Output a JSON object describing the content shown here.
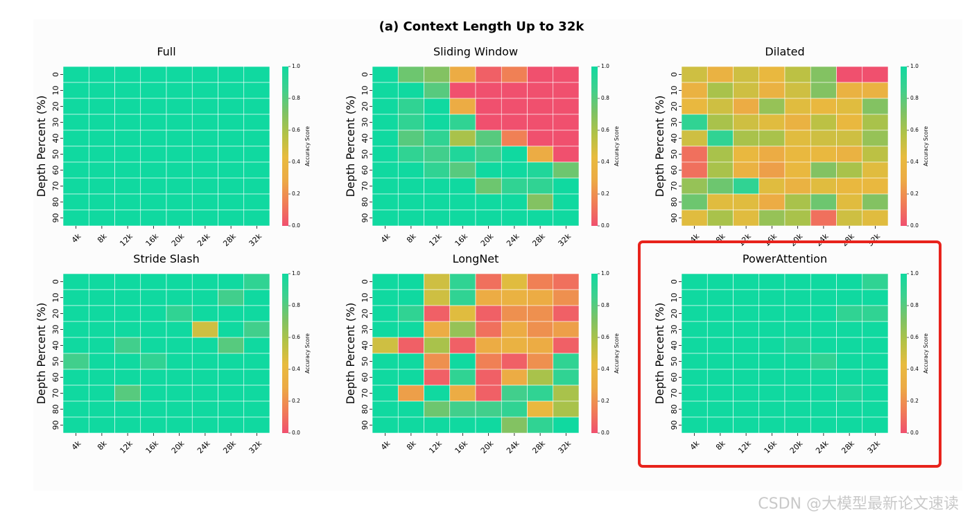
{
  "figure": {
    "title": "(a) Context Length Up to 32k",
    "watermark": "CSDN @大模型最新论文速读",
    "highlight_color": "#e8231c"
  },
  "colormap": [
    "#f0506e",
    "#f07e56",
    "#ecaa45",
    "#e8bb3e",
    "#b4c245",
    "#7dc265",
    "#3ed08e",
    "#10d9a0"
  ],
  "chart_data": [
    {
      "type": "heatmap",
      "title": "Full",
      "xlabel": "",
      "ylabel": "Depth Percent (%)",
      "x": [
        "4k",
        "8k",
        "12k",
        "16k",
        "20k",
        "24k",
        "28k",
        "32k"
      ],
      "y": [
        "0",
        "10",
        "20",
        "30",
        "40",
        "50",
        "60",
        "70",
        "80",
        "90"
      ],
      "colorbar_label": "Accuracy Score",
      "colorbar_ticks": [
        "1.0",
        "0.8",
        "0.6",
        "0.4",
        "0.2",
        "0.0"
      ],
      "vlim": [
        0,
        1
      ],
      "values": [
        [
          1,
          1,
          1,
          1,
          1,
          1,
          1,
          1
        ],
        [
          1,
          1,
          1,
          1,
          1,
          1,
          1,
          1
        ],
        [
          1,
          1,
          1,
          1,
          1,
          1,
          1,
          1
        ],
        [
          1,
          1,
          1,
          1,
          1,
          1,
          1,
          1
        ],
        [
          1,
          1,
          1,
          1,
          1,
          1,
          1,
          1
        ],
        [
          1,
          1,
          1,
          1,
          1,
          1,
          1,
          1
        ],
        [
          1,
          1,
          1,
          1,
          1,
          1,
          1,
          1
        ],
        [
          1,
          1,
          1,
          1,
          1,
          1,
          1,
          1
        ],
        [
          1,
          1,
          1,
          1,
          1,
          1,
          1,
          1
        ],
        [
          1,
          1,
          1,
          1,
          1,
          1,
          1,
          1
        ]
      ]
    },
    {
      "type": "heatmap",
      "title": "Sliding Window",
      "xlabel": "",
      "ylabel": "Depth Percent (%)",
      "x": [
        "4k",
        "8k",
        "12k",
        "16k",
        "20k",
        "24k",
        "28k",
        "32k"
      ],
      "y": [
        "0",
        "10",
        "20",
        "30",
        "40",
        "50",
        "60",
        "70",
        "80",
        "90"
      ],
      "colorbar_label": "Accuracy Score",
      "colorbar_ticks": [
        "1.0",
        "0.8",
        "0.6",
        "0.4",
        "0.2",
        "0.0"
      ],
      "vlim": [
        0,
        1
      ],
      "values": [
        [
          1,
          0.75,
          0.7,
          0.3,
          0.05,
          0.15,
          0,
          0
        ],
        [
          1,
          1,
          0.8,
          0,
          0,
          0,
          0,
          0
        ],
        [
          1,
          0.9,
          1,
          0.3,
          0,
          0,
          0,
          0
        ],
        [
          1,
          0.9,
          1,
          0.9,
          0,
          0,
          0,
          0
        ],
        [
          1,
          0.8,
          0.9,
          0.6,
          0.8,
          0.15,
          0,
          0
        ],
        [
          1,
          0.9,
          0.85,
          0.95,
          0.85,
          1,
          0.3,
          0
        ],
        [
          1,
          1,
          0.9,
          0.8,
          1,
          1,
          0.95,
          0.75
        ],
        [
          1,
          1,
          1,
          1,
          0.75,
          0.9,
          0.9,
          1
        ],
        [
          1,
          1,
          1,
          1,
          1,
          1,
          0.7,
          1
        ],
        [
          1,
          1,
          1,
          1,
          1,
          1,
          1,
          1
        ]
      ]
    },
    {
      "type": "heatmap",
      "title": "Dilated",
      "xlabel": "",
      "ylabel": "Depth Percent (%)",
      "x": [
        "4k",
        "8k",
        "12k",
        "16k",
        "20k",
        "24k",
        "28k",
        "32k"
      ],
      "y": [
        "0",
        "10",
        "20",
        "30",
        "40",
        "50",
        "60",
        "70",
        "80",
        "90"
      ],
      "colorbar_label": "Accuracy Score",
      "colorbar_ticks": [
        "1.0",
        "0.8",
        "0.6",
        "0.4",
        "0.2",
        "0.0"
      ],
      "vlim": [
        0,
        1
      ],
      "values": [
        [
          0.5,
          0.35,
          0.5,
          0.4,
          0.55,
          0.7,
          0,
          0
        ],
        [
          0.35,
          0.6,
          0.5,
          0.35,
          0.5,
          0.7,
          0.35,
          0.35
        ],
        [
          0.4,
          0.5,
          0.3,
          0.65,
          0.45,
          0.4,
          0.45,
          0.7
        ],
        [
          0.9,
          0.6,
          0.5,
          0.45,
          0.35,
          0.55,
          0.4,
          0.6
        ],
        [
          0.5,
          0.9,
          0.6,
          0.6,
          0.45,
          0.5,
          0.5,
          0.65
        ],
        [
          0.1,
          0.6,
          0.4,
          0.3,
          0.4,
          0.4,
          0.35,
          0.55
        ],
        [
          0.1,
          0.6,
          0.35,
          0.25,
          0.4,
          0.7,
          0.6,
          0.45
        ],
        [
          0.65,
          0.75,
          0.9,
          0.45,
          0.35,
          0.45,
          0.4,
          0.4
        ],
        [
          0.75,
          0.45,
          0.45,
          0.3,
          0.6,
          0.75,
          0.45,
          0.7
        ],
        [
          0.45,
          0.6,
          0.45,
          0.65,
          0.6,
          0.1,
          0.5,
          0.45
        ]
      ]
    },
    {
      "type": "heatmap",
      "title": "Stride Slash",
      "xlabel": "",
      "ylabel": "Depth Percent (%)",
      "x": [
        "4k",
        "8k",
        "12k",
        "16k",
        "20k",
        "24k",
        "28k",
        "32k"
      ],
      "y": [
        "0",
        "10",
        "20",
        "30",
        "40",
        "50",
        "60",
        "70",
        "80",
        "90"
      ],
      "colorbar_label": "Accuracy Score",
      "colorbar_ticks": [
        "1.0",
        "0.8",
        "0.6",
        "0.4",
        "0.2",
        "0.0"
      ],
      "vlim": [
        0,
        1
      ],
      "values": [
        [
          1,
          1,
          1,
          1,
          1,
          1,
          1,
          0.9
        ],
        [
          1,
          1,
          1,
          1,
          1,
          1,
          0.85,
          1
        ],
        [
          1,
          1,
          1,
          1,
          0.9,
          1,
          1,
          1
        ],
        [
          1,
          1,
          1,
          1,
          1,
          0.5,
          1,
          0.85
        ],
        [
          1,
          1,
          0.85,
          1,
          1,
          1,
          0.8,
          1
        ],
        [
          0.85,
          1,
          1,
          0.9,
          1,
          1,
          1,
          1
        ],
        [
          1,
          1,
          1,
          1,
          1,
          1,
          1,
          1
        ],
        [
          1,
          1,
          0.8,
          1,
          1,
          1,
          1,
          1
        ],
        [
          1,
          1,
          1,
          1,
          1,
          1,
          1,
          1
        ],
        [
          1,
          1,
          1,
          1,
          1,
          1,
          1,
          1
        ]
      ]
    },
    {
      "type": "heatmap",
      "title": "LongNet",
      "xlabel": "",
      "ylabel": "Depth Percent (%)",
      "x": [
        "4k",
        "8k",
        "12k",
        "16k",
        "20k",
        "24k",
        "28k",
        "32k"
      ],
      "y": [
        "0",
        "10",
        "20",
        "30",
        "40",
        "50",
        "60",
        "70",
        "80",
        "90"
      ],
      "colorbar_label": "Accuracy Score",
      "colorbar_ticks": [
        "1.0",
        "0.8",
        "0.6",
        "0.4",
        "0.2",
        "0.0"
      ],
      "vlim": [
        0,
        1
      ],
      "values": [
        [
          1,
          1,
          0.5,
          0.9,
          0.1,
          0.45,
          0.15,
          0.1
        ],
        [
          1,
          1,
          0.5,
          0.9,
          0.3,
          0.35,
          0.3,
          0.2
        ],
        [
          1,
          0.9,
          0.05,
          0.45,
          0.05,
          0.2,
          0.2,
          0.05
        ],
        [
          1,
          1,
          0.3,
          0.65,
          0.1,
          0.3,
          0.2,
          0.25
        ],
        [
          0.5,
          0.05,
          0.6,
          0.05,
          0.3,
          0.35,
          0.3,
          0.05
        ],
        [
          1,
          1,
          0.2,
          1,
          0.15,
          0.05,
          0.2,
          0.9
        ],
        [
          1,
          1,
          0.05,
          0.9,
          0.05,
          0.3,
          0.6,
          0.9
        ],
        [
          1,
          0.25,
          1,
          0.3,
          0.05,
          0.85,
          0.9,
          0.6
        ],
        [
          1,
          1,
          0.75,
          0.85,
          0.85,
          0.9,
          0.4,
          0.6
        ],
        [
          1,
          1,
          1,
          1,
          1,
          0.7,
          0.9,
          1
        ]
      ]
    },
    {
      "type": "heatmap",
      "title": "PowerAttention",
      "xlabel": "",
      "ylabel": "Depth Percent (%)",
      "x": [
        "4k",
        "8k",
        "12k",
        "16k",
        "20k",
        "24k",
        "28k",
        "32k"
      ],
      "y": [
        "0",
        "10",
        "20",
        "30",
        "40",
        "50",
        "60",
        "70",
        "80",
        "90"
      ],
      "colorbar_label": "Accuracy Score",
      "colorbar_ticks": [
        "1.0",
        "0.8",
        "0.6",
        "0.4",
        "0.2",
        "0.0"
      ],
      "vlim": [
        0,
        1
      ],
      "values": [
        [
          1,
          1,
          1,
          1,
          1,
          1,
          1,
          0.9
        ],
        [
          1,
          1,
          1,
          1,
          1,
          1,
          1,
          1
        ],
        [
          1,
          1,
          1,
          1,
          1,
          1,
          0.9,
          0.9
        ],
        [
          1,
          1,
          1,
          1,
          1,
          1,
          1,
          1
        ],
        [
          1,
          1,
          1,
          1,
          0.95,
          1,
          1,
          1
        ],
        [
          1,
          1,
          1,
          1,
          1,
          0.9,
          1,
          1
        ],
        [
          1,
          1,
          1,
          1,
          1,
          1,
          1,
          1
        ],
        [
          1,
          1,
          1,
          1,
          1,
          1,
          0.95,
          1
        ],
        [
          1,
          1,
          1,
          1,
          1,
          1,
          1,
          1
        ],
        [
          1,
          1,
          1,
          1,
          1,
          1,
          1,
          1
        ]
      ]
    }
  ]
}
